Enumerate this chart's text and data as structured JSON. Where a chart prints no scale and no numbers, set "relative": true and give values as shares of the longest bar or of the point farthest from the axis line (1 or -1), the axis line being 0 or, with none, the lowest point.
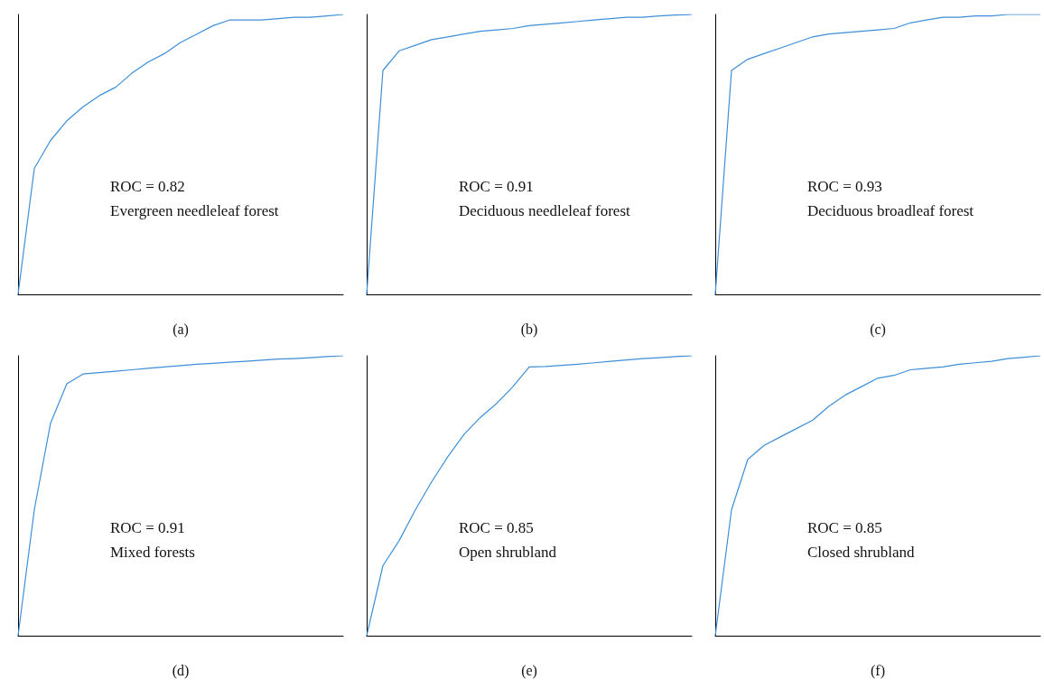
{
  "chart_data": [
    {
      "type": "line",
      "relative": true,
      "xlabel": "(a)",
      "annotations": [
        "ROC = 0.82",
        "Evergreen needleleaf forest"
      ],
      "categories": [
        null,
        null,
        null,
        null,
        null,
        null,
        null,
        null,
        null,
        null,
        null,
        null,
        null,
        null,
        null,
        null,
        null,
        null,
        null,
        null,
        null
      ],
      "series": [
        {
          "color": "#3d8fd8",
          "values": [
            0,
            0.45,
            0.55,
            0.62,
            0.67,
            0.71,
            0.74,
            0.79,
            0.83,
            0.86,
            0.9,
            0.93,
            0.96,
            0.98,
            0.98,
            0.98,
            0.985,
            0.99,
            0.99,
            0.995,
            1
          ]
        }
      ]
    },
    {
      "type": "line",
      "relative": true,
      "xlabel": "(b)",
      "annotations": [
        "ROC = 0.91",
        "Deciduous needleleaf forest"
      ],
      "categories": [
        null,
        null,
        null,
        null,
        null,
        null,
        null,
        null,
        null,
        null,
        null,
        null,
        null,
        null,
        null,
        null,
        null,
        null,
        null,
        null,
        null
      ],
      "series": [
        {
          "color": "#3d8fd8",
          "values": [
            0,
            0.8,
            0.87,
            0.89,
            0.91,
            0.92,
            0.93,
            0.94,
            0.945,
            0.95,
            0.96,
            0.965,
            0.97,
            0.975,
            0.98,
            0.985,
            0.99,
            0.99,
            0.995,
            0.998,
            1
          ]
        }
      ]
    },
    {
      "type": "line",
      "relative": true,
      "xlabel": "(c)",
      "annotations": [
        "ROC = 0.93",
        "Deciduous broadleaf forest"
      ],
      "categories": [
        null,
        null,
        null,
        null,
        null,
        null,
        null,
        null,
        null,
        null,
        null,
        null,
        null,
        null,
        null,
        null,
        null,
        null,
        null,
        null,
        null
      ],
      "series": [
        {
          "color": "#3d8fd8",
          "values": [
            0,
            0.8,
            0.84,
            0.86,
            0.88,
            0.9,
            0.92,
            0.93,
            0.935,
            0.94,
            0.945,
            0.95,
            0.97,
            0.98,
            0.99,
            0.99,
            0.995,
            0.995,
            1,
            1,
            1
          ]
        }
      ]
    },
    {
      "type": "line",
      "relative": true,
      "xlabel": "(d)",
      "annotations": [
        "ROC = 0.91",
        "Mixed forests"
      ],
      "categories": [
        null,
        null,
        null,
        null,
        null,
        null,
        null,
        null,
        null,
        null,
        null,
        null,
        null,
        null,
        null,
        null,
        null,
        null,
        null,
        null,
        null
      ],
      "series": [
        {
          "color": "#3d8fd8",
          "values": [
            0,
            0.45,
            0.76,
            0.9,
            0.935,
            0.94,
            0.945,
            0.95,
            0.955,
            0.96,
            0.965,
            0.97,
            0.973,
            0.977,
            0.98,
            0.984,
            0.988,
            0.99,
            0.993,
            0.997,
            1
          ]
        }
      ]
    },
    {
      "type": "line",
      "relative": true,
      "xlabel": "(e)",
      "annotations": [
        "ROC = 0.85",
        "Open shrubland"
      ],
      "categories": [
        null,
        null,
        null,
        null,
        null,
        null,
        null,
        null,
        null,
        null,
        null,
        null,
        null,
        null,
        null,
        null,
        null,
        null,
        null,
        null,
        null
      ],
      "series": [
        {
          "color": "#3d8fd8",
          "values": [
            0,
            0.25,
            0.34,
            0.45,
            0.55,
            0.64,
            0.72,
            0.78,
            0.83,
            0.89,
            0.96,
            0.962,
            0.966,
            0.97,
            0.975,
            0.98,
            0.985,
            0.99,
            0.993,
            0.997,
            1
          ]
        }
      ]
    },
    {
      "type": "line",
      "relative": true,
      "xlabel": "(f)",
      "annotations": [
        "ROC = 0.85",
        "Closed shrubland"
      ],
      "categories": [
        null,
        null,
        null,
        null,
        null,
        null,
        null,
        null,
        null,
        null,
        null,
        null,
        null,
        null,
        null,
        null,
        null,
        null,
        null,
        null,
        null
      ],
      "series": [
        {
          "color": "#3d8fd8",
          "values": [
            0,
            0.45,
            0.63,
            0.68,
            0.71,
            0.74,
            0.77,
            0.82,
            0.86,
            0.89,
            0.92,
            0.93,
            0.95,
            0.955,
            0.96,
            0.97,
            0.975,
            0.98,
            0.99,
            0.995,
            1
          ]
        }
      ]
    }
  ]
}
